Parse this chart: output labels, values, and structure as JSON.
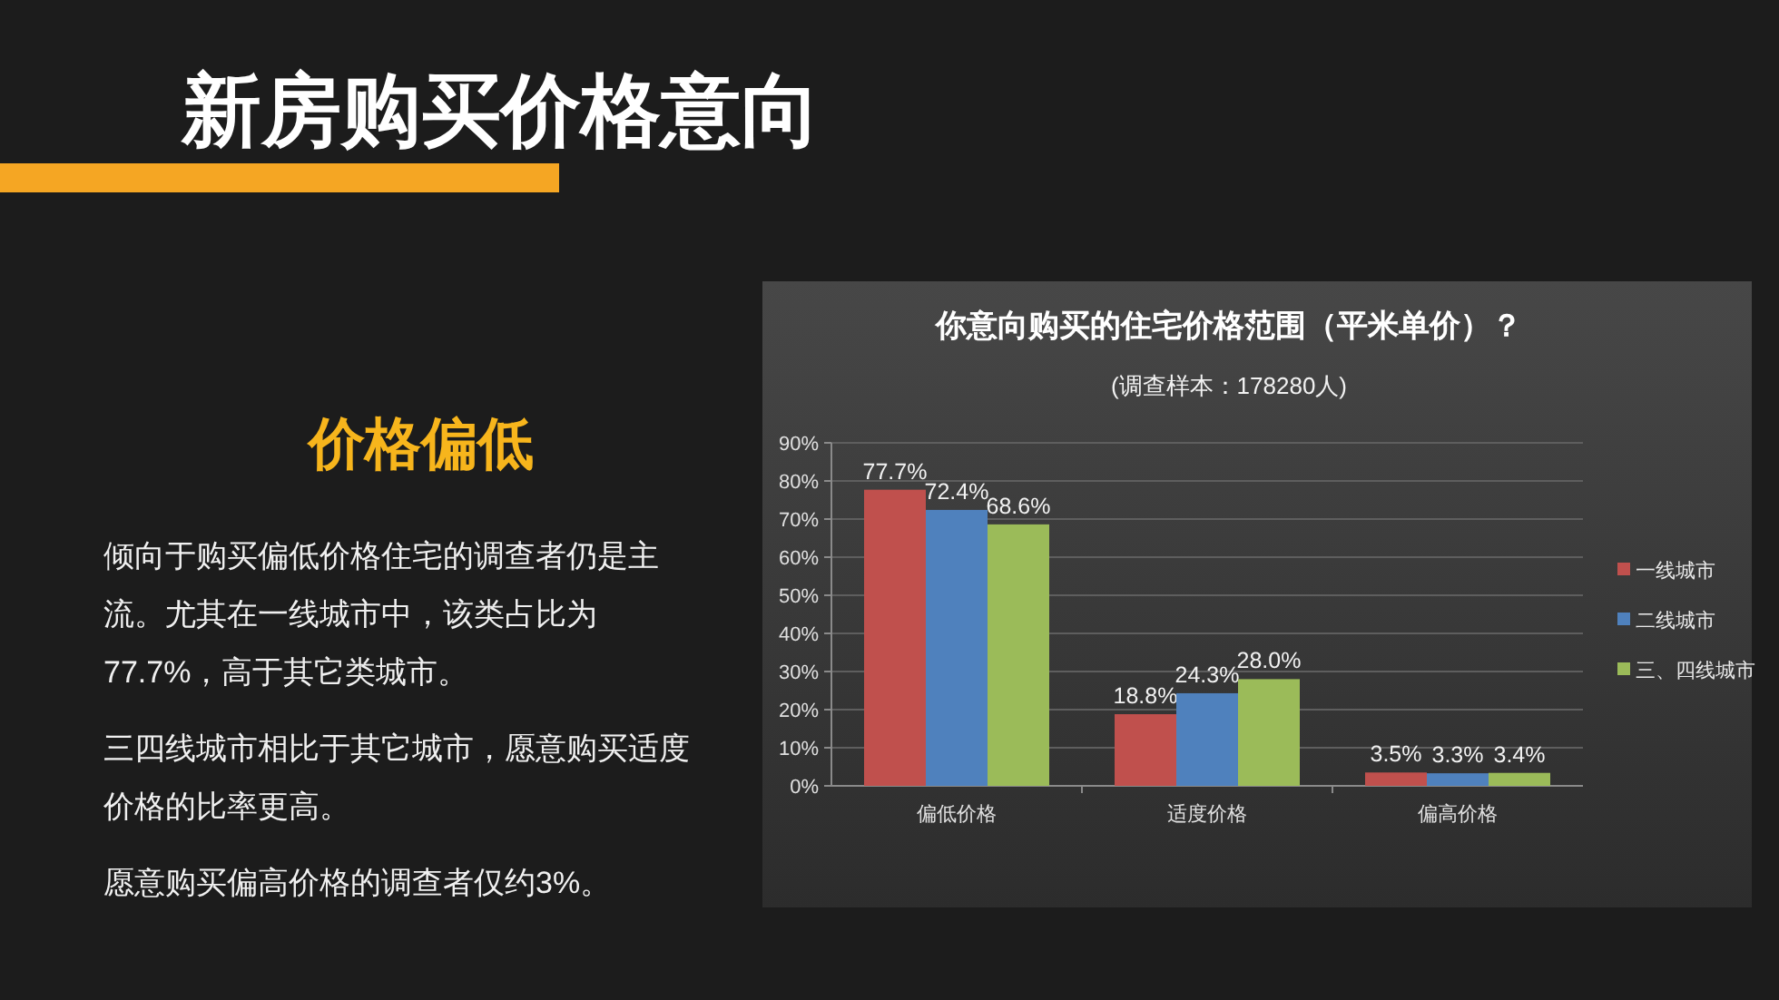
{
  "chart_data": {
    "type": "bar",
    "title": "你意向购买的住宅价格范围（平米单价）？",
    "subtitle": "(调查样本：178280人)",
    "categories": [
      "偏低价格",
      "适度价格",
      "偏高价格"
    ],
    "series": [
      {
        "name": "一线城市",
        "color": "#c0504d",
        "values": [
          77.7,
          18.8,
          3.5
        ],
        "value_labels": [
          "77.7%",
          "18.8%",
          "3.5%"
        ]
      },
      {
        "name": "二线城市",
        "color": "#4f81bd",
        "values": [
          72.4,
          24.3,
          3.3
        ],
        "value_labels": [
          "72.4%",
          "24.3%",
          "3.3%"
        ]
      },
      {
        "name": "三、四线城市",
        "color": "#9bbb59",
        "values": [
          68.6,
          28.0,
          3.4
        ],
        "value_labels": [
          "68.6%",
          "28.0%",
          "3.4%"
        ]
      }
    ],
    "ylim": [
      0,
      90
    ],
    "yticks": [
      {
        "value": 0,
        "label": "0%"
      },
      {
        "value": 10,
        "label": "10%"
      },
      {
        "value": 20,
        "label": "20%"
      },
      {
        "value": 30,
        "label": "30%"
      },
      {
        "value": 40,
        "label": "40%"
      },
      {
        "value": 50,
        "label": "50%"
      },
      {
        "value": 60,
        "label": "60%"
      },
      {
        "value": 70,
        "label": "70%"
      },
      {
        "value": 80,
        "label": "80%"
      },
      {
        "value": 90,
        "label": "90%"
      }
    ],
    "grid": "y",
    "legend": "right",
    "annotations": [
      "新房购买价格意向",
      "价格偏低",
      "倾向于购买偏低价格住宅的调查者仍是主流。尤其在一线城市中，该类占比为77.7%，高于其它类城市。",
      "三四线城市相比于其它城市，愿意购买适度价格的比率更高。",
      "愿意购买偏高价格的调查者仅约3%。"
    ]
  }
}
